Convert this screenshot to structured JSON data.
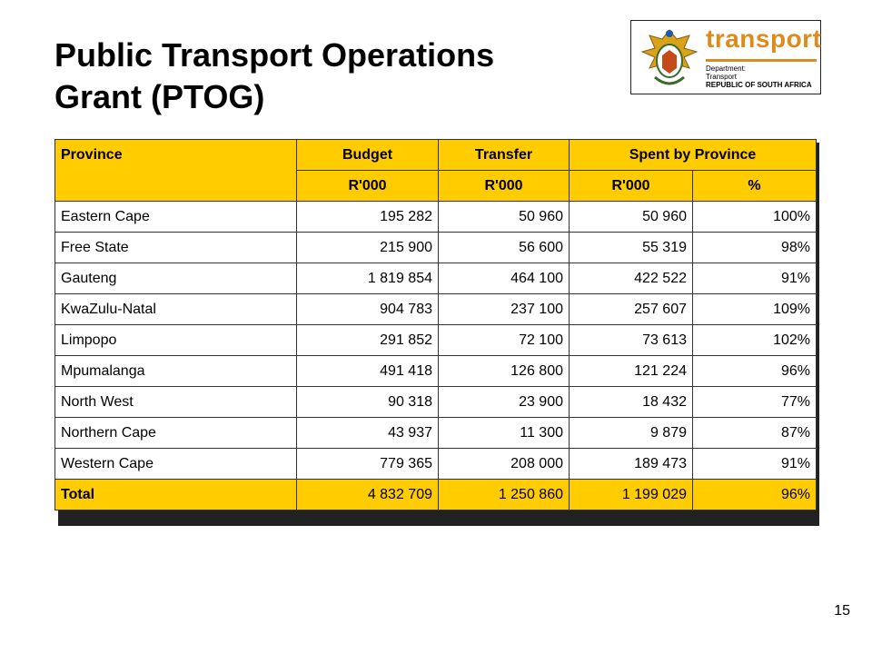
{
  "title": {
    "line1": "Public Transport Operations",
    "line2": "Grant (PTOG)"
  },
  "logo": {
    "brand": "transport",
    "dept_line1": "Department:",
    "dept_line2": "Transport",
    "dept_line3": "REPUBLIC OF SOUTH AFRICA"
  },
  "table": {
    "headers": {
      "province": "Province",
      "budget": "Budget",
      "transfer": "Transfer",
      "spent": "Spent by Province"
    },
    "subheaders": [
      "R'000",
      "R'000",
      "R'000",
      "%"
    ],
    "rows": [
      {
        "province": "Eastern Cape",
        "budget": "195 282",
        "transfer": "50 960",
        "spent": "50 960",
        "pct": "100%"
      },
      {
        "province": "Free State",
        "budget": "215 900",
        "transfer": "56 600",
        "spent": "55 319",
        "pct": "98%"
      },
      {
        "province": "Gauteng",
        "budget": "1 819 854",
        "transfer": "464 100",
        "spent": "422 522",
        "pct": "91%"
      },
      {
        "province": "KwaZulu-Natal",
        "budget": "904 783",
        "transfer": "237 100",
        "spent": "257 607",
        "pct": "109%"
      },
      {
        "province": "Limpopo",
        "budget": "291 852",
        "transfer": "72 100",
        "spent": "73 613",
        "pct": "102%"
      },
      {
        "province": "Mpumalanga",
        "budget": "491 418",
        "transfer": "126 800",
        "spent": "121 224",
        "pct": "96%"
      },
      {
        "province": "North West",
        "budget": "90 318",
        "transfer": "23 900",
        "spent": "18 432",
        "pct": "77%"
      },
      {
        "province": "Northern Cape",
        "budget": "43 937",
        "transfer": "11 300",
        "spent": "9 879",
        "pct": "87%"
      },
      {
        "province": "Western Cape",
        "budget": "779 365",
        "transfer": "208 000",
        "spent": "189 473",
        "pct": "91%"
      }
    ],
    "total": {
      "province": "Total",
      "budget": "4 832 709",
      "transfer": "1 250 860",
      "spent": "1 199 029",
      "pct": "96%"
    }
  },
  "page_number": "15",
  "colors": {
    "header_fill": "#ffcc00",
    "brand_orange": "#e08a1e"
  }
}
